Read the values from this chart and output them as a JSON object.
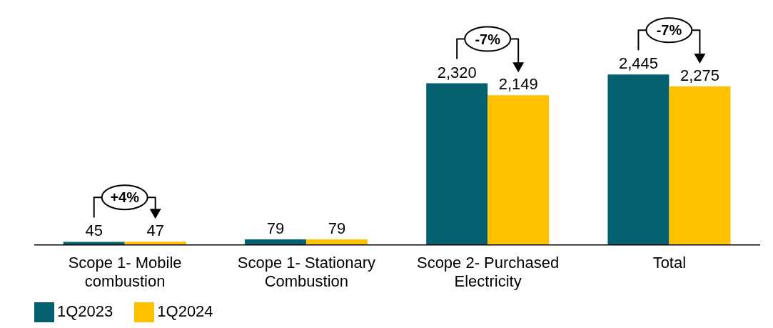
{
  "chart_data": {
    "type": "bar",
    "categories": [
      "Scope 1- Mobile combustion",
      "Scope 1- Stationary Combustion",
      "Scope 2- Purchased Electricity",
      "Total"
    ],
    "series": [
      {
        "name": "1Q2023",
        "color": "#03606f",
        "values": [
          45,
          79,
          2320,
          2445
        ],
        "value_labels": [
          "45",
          "79",
          "2,320",
          "2,445"
        ]
      },
      {
        "name": "1Q2024",
        "color": "#ffc000",
        "values": [
          47,
          79,
          2149,
          2275
        ],
        "value_labels": [
          "47",
          "79",
          "2,149",
          "2,275"
        ]
      }
    ],
    "legend": "bottom left",
    "annotations": [
      {
        "text": "+4%",
        "x": "Scope 1- Mobile combustion",
        "y": 45
      },
      {
        "text": "-7%",
        "x": "Scope 2- Purchased Electricity",
        "y": 2320
      },
      {
        "text": "-7%",
        "x": "Total",
        "y": 2445
      }
    ]
  }
}
